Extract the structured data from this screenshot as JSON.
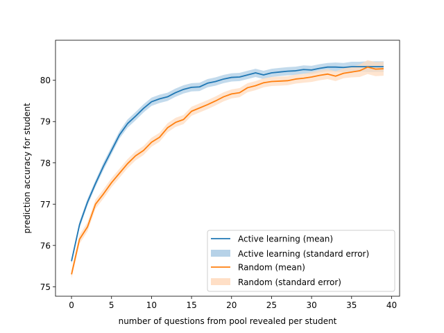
{
  "chart_data": {
    "type": "line",
    "xlabel": "number of questions from pool revealed per student",
    "ylabel": "prediction accuracy for student",
    "xlim": [
      -2,
      41
    ],
    "ylim": [
      74.77,
      80.97
    ],
    "xticks": [
      "0",
      "5",
      "10",
      "15",
      "20",
      "25",
      "30",
      "35",
      "40"
    ],
    "yticks": [
      "75",
      "76",
      "77",
      "78",
      "79",
      "80"
    ],
    "grid": false,
    "legend_position": "lower-right",
    "x": [
      0,
      1,
      2,
      3,
      4,
      5,
      6,
      7,
      8,
      9,
      10,
      11,
      12,
      13,
      14,
      15,
      16,
      17,
      18,
      19,
      20,
      21,
      22,
      23,
      24,
      25,
      26,
      27,
      28,
      29,
      30,
      31,
      32,
      33,
      34,
      35,
      36,
      37,
      38,
      39
    ],
    "series": [
      {
        "name": "Active learning (mean)",
        "band_name": "Active learning (standard error)",
        "color": "#1f77b4",
        "band_color": "#aecde6",
        "values": [
          75.62,
          76.5,
          77.05,
          77.5,
          77.92,
          78.3,
          78.68,
          78.95,
          79.13,
          79.32,
          79.48,
          79.55,
          79.6,
          79.7,
          79.78,
          79.83,
          79.84,
          79.93,
          79.97,
          80.03,
          80.07,
          80.08,
          80.13,
          80.18,
          80.13,
          80.18,
          80.2,
          80.22,
          80.23,
          80.26,
          80.25,
          80.29,
          80.32,
          80.32,
          80.31,
          80.33,
          80.33,
          80.33,
          80.33,
          80.33
        ],
        "errors": [
          0.07,
          0.08,
          0.08,
          0.08,
          0.09,
          0.09,
          0.09,
          0.1,
          0.1,
          0.1,
          0.1,
          0.1,
          0.1,
          0.1,
          0.1,
          0.1,
          0.1,
          0.1,
          0.1,
          0.1,
          0.1,
          0.1,
          0.1,
          0.1,
          0.1,
          0.1,
          0.1,
          0.1,
          0.1,
          0.1,
          0.1,
          0.1,
          0.1,
          0.11,
          0.11,
          0.12,
          0.12,
          0.13,
          0.13,
          0.13
        ]
      },
      {
        "name": "Random (mean)",
        "band_name": "Random (standard error)",
        "color": "#ff7f0e",
        "band_color": "#ffdcc0",
        "values": [
          75.3,
          76.15,
          76.45,
          77.0,
          77.25,
          77.52,
          77.75,
          77.98,
          78.17,
          78.3,
          78.5,
          78.62,
          78.85,
          78.98,
          79.05,
          79.25,
          79.33,
          79.41,
          79.5,
          79.6,
          79.67,
          79.7,
          79.82,
          79.87,
          79.94,
          79.97,
          79.98,
          79.99,
          80.03,
          80.05,
          80.08,
          80.12,
          80.15,
          80.1,
          80.17,
          80.2,
          80.23,
          80.32,
          80.27,
          80.28
        ],
        "errors": [
          0.1,
          0.11,
          0.11,
          0.11,
          0.11,
          0.11,
          0.11,
          0.11,
          0.11,
          0.11,
          0.11,
          0.11,
          0.11,
          0.11,
          0.11,
          0.11,
          0.11,
          0.11,
          0.11,
          0.11,
          0.11,
          0.11,
          0.11,
          0.11,
          0.11,
          0.11,
          0.11,
          0.11,
          0.11,
          0.11,
          0.12,
          0.12,
          0.12,
          0.12,
          0.12,
          0.13,
          0.15,
          0.17,
          0.17,
          0.17
        ]
      }
    ]
  }
}
